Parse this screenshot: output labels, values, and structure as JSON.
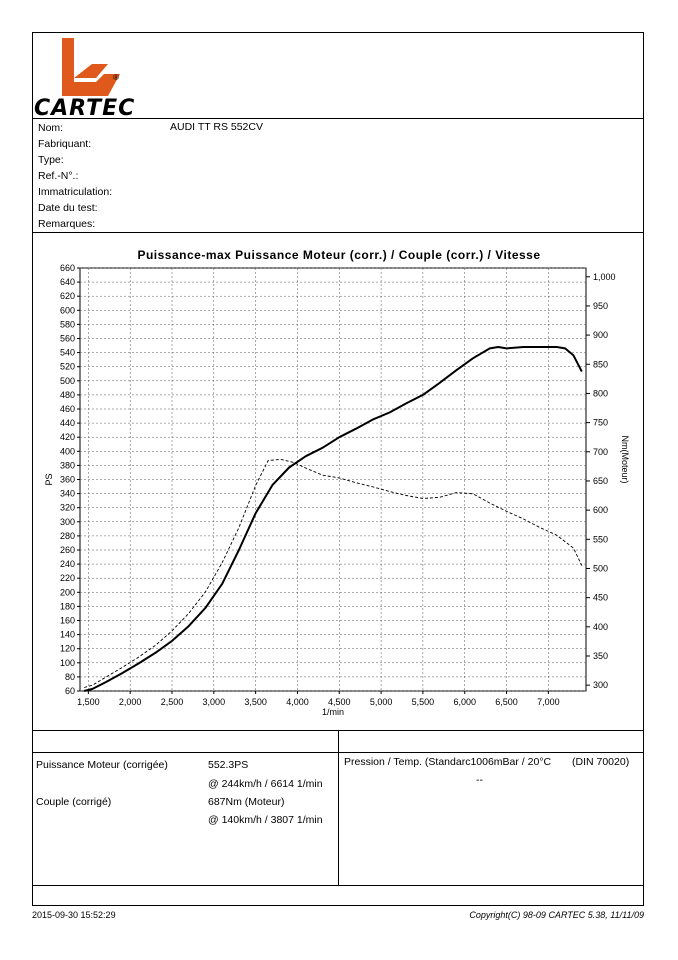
{
  "header": {
    "brand": "CARTEC",
    "registered_mark": "®"
  },
  "vehicle": {
    "fields": [
      {
        "label": "Nom:",
        "value": "AUDI TT RS 552CV"
      },
      {
        "label": "Fabriquant:",
        "value": ""
      },
      {
        "label": "Type:",
        "value": ""
      },
      {
        "label": "Ref.-N°.:",
        "value": ""
      },
      {
        "label": "Immatriculation:",
        "value": ""
      },
      {
        "label": "Date du test:",
        "value": ""
      },
      {
        "label": "Remarques:",
        "value": ""
      }
    ]
  },
  "chart_data": {
    "type": "line",
    "title": "Puissance-max Puissance Moteur (corr.) / Couple (corr.) / Vitesse",
    "xlabel": "1/min",
    "ylabel": "PS",
    "y2label": "Nm(Moteur)",
    "xlim": [
      1400,
      7450
    ],
    "ylim": [
      60,
      660
    ],
    "y2lim": [
      290,
      1015
    ],
    "x_ticks": [
      1500,
      2000,
      2500,
      3000,
      3500,
      4000,
      4500,
      5000,
      5500,
      6000,
      6500,
      7000
    ],
    "x_tick_labels": [
      "1,500",
      "2,000",
      "2,500",
      "3,000",
      "3,500",
      "4,000",
      "4,500",
      "5,000",
      "5,500",
      "6,000",
      "6,500",
      "7,000"
    ],
    "y_ticks": [
      60,
      80,
      100,
      120,
      140,
      160,
      180,
      200,
      220,
      240,
      260,
      280,
      300,
      320,
      340,
      360,
      380,
      400,
      420,
      440,
      460,
      480,
      500,
      520,
      540,
      560,
      580,
      600,
      620,
      640,
      660
    ],
    "y2_ticks": [
      300,
      350,
      400,
      450,
      500,
      550,
      600,
      650,
      700,
      750,
      800,
      850,
      900,
      950,
      1000
    ],
    "y2_tick_labels": [
      "300",
      "350",
      "400",
      "450",
      "500",
      "550",
      "600",
      "650",
      "700",
      "750",
      "800",
      "850",
      "900",
      "950",
      "1,000"
    ],
    "grid": true,
    "series": [
      {
        "name": "Puissance Moteur (corr.)",
        "axis": "left",
        "style": "solid",
        "x": [
          1450,
          1550,
          1700,
          1900,
          2100,
          2300,
          2500,
          2700,
          2900,
          3100,
          3300,
          3500,
          3700,
          3900,
          4100,
          4300,
          4500,
          4700,
          4900,
          5100,
          5300,
          5500,
          5700,
          5900,
          6100,
          6300,
          6400,
          6500,
          6700,
          6900,
          7100,
          7200,
          7300,
          7400
        ],
        "y": [
          60,
          63,
          72,
          85,
          99,
          114,
          131,
          152,
          178,
          212,
          260,
          312,
          352,
          377,
          393,
          405,
          420,
          432,
          445,
          455,
          468,
          480,
          497,
          515,
          532,
          546,
          548,
          546,
          548,
          548,
          548,
          546,
          536,
          513
        ]
      },
      {
        "name": "Couple (corr.)",
        "axis": "right",
        "style": "dashed",
        "x": [
          1450,
          1550,
          1700,
          1900,
          2100,
          2300,
          2500,
          2700,
          2900,
          3100,
          3300,
          3500,
          3650,
          3800,
          3950,
          4100,
          4300,
          4500,
          4700,
          4900,
          5100,
          5300,
          5500,
          5700,
          5900,
          6100,
          6300,
          6500,
          6700,
          6900,
          7100,
          7300,
          7400
        ],
        "y": [
          296,
          300,
          313,
          330,
          348,
          368,
          393,
          423,
          460,
          510,
          570,
          642,
          685,
          687,
          682,
          672,
          660,
          655,
          647,
          640,
          632,
          625,
          620,
          622,
          630,
          628,
          612,
          598,
          585,
          570,
          557,
          535,
          505
        ]
      }
    ]
  },
  "results": {
    "power_label": "Puissance Moteur (corrigée)",
    "power_value": "552.3PS",
    "power_at": "@ 244km/h / 6614 1/min",
    "torque_label": "Couple (corrigé)",
    "torque_value": "687Nm (Moteur)",
    "torque_at": "@ 140km/h / 3807 1/min",
    "pressure_label": "Pression / Temp. (Standarc1006mBar / 20°C",
    "norm": "(DIN 70020)",
    "pressure_value": "--"
  },
  "footer": {
    "timestamp": "2015-09-30 15:52:29",
    "copyright": "Copyright(C) 98-09 CARTEC 5.38, 11/11/09"
  },
  "colors": {
    "logo": "#e0591c",
    "line": "#000000",
    "grid": "#555555"
  }
}
